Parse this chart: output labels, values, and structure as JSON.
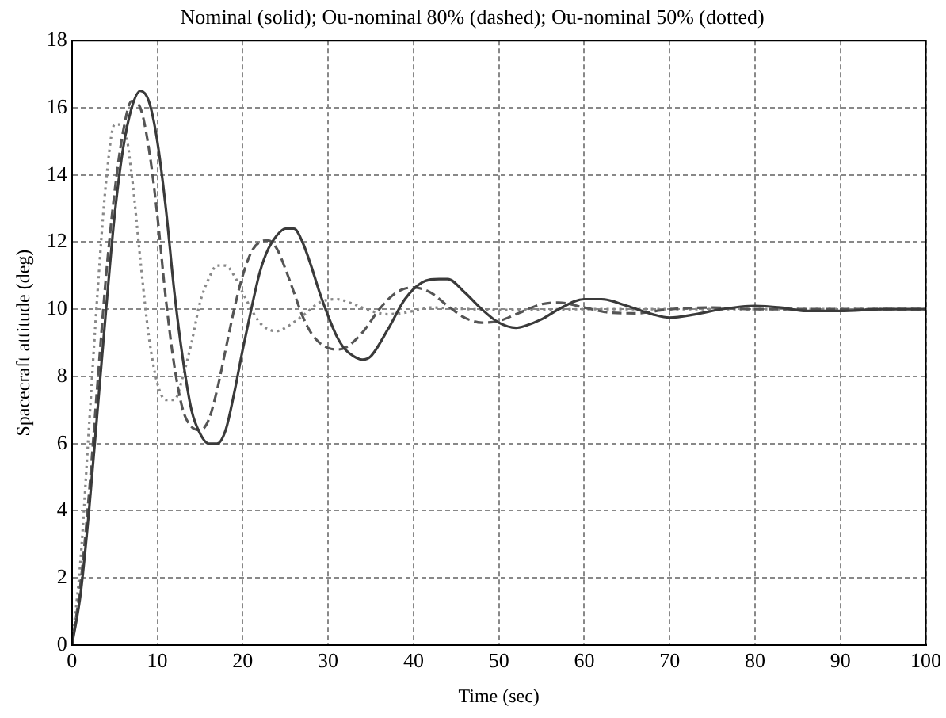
{
  "chart_data": {
    "type": "line",
    "title": "Nominal (solid); Ou-nominal 80% (dashed); Ou-nominal 50% (dotted)",
    "xlabel": "Time (sec)",
    "ylabel": "Spacecraft attitude (deg)",
    "xlim": [
      0,
      100
    ],
    "xticks": [
      0,
      10,
      20,
      30,
      40,
      50,
      60,
      70,
      80,
      90,
      100
    ],
    "ylim": [
      0,
      18
    ],
    "yticks": [
      0,
      2,
      4,
      6,
      8,
      10,
      12,
      14,
      16,
      18
    ],
    "grid": true,
    "legend": false,
    "marker": "none",
    "series": [
      {
        "color": "#3a3a3a",
        "line_style": "solid",
        "x": [
          0,
          1,
          2,
          3,
          4,
          5,
          6,
          7,
          8,
          9,
          10,
          11,
          12,
          13,
          14,
          15,
          16,
          17,
          18,
          19,
          20,
          21,
          22,
          23,
          24,
          25,
          26,
          27,
          28,
          29,
          30,
          31,
          32,
          33,
          34,
          35,
          37,
          39,
          41,
          43,
          44,
          46,
          48,
          50,
          52,
          53,
          55,
          57,
          60,
          62,
          65,
          68,
          70,
          73,
          76,
          80,
          83,
          86,
          90,
          95,
          100
        ],
        "values": [
          0,
          1.5,
          4,
          7,
          10,
          12.8,
          14.8,
          16,
          16.5,
          16.2,
          15,
          13,
          10.5,
          8.5,
          7,
          6.3,
          6,
          6,
          6.4,
          7.5,
          8.8,
          10,
          11.1,
          11.8,
          12.2,
          12.4,
          12.4,
          12,
          11.3,
          10.5,
          9.8,
          9.2,
          8.8,
          8.6,
          8.5,
          8.6,
          9.4,
          10.3,
          10.8,
          10.9,
          10.9,
          10.5,
          10,
          9.6,
          9.45,
          9.5,
          9.7,
          10,
          10.3,
          10.3,
          10.1,
          9.85,
          9.75,
          9.85,
          10,
          10.1,
          10.05,
          9.95,
          9.95,
          10,
          10
        ]
      },
      {
        "color": "#555555",
        "line_style": "dashed",
        "x": [
          0,
          1,
          2,
          3,
          4,
          5,
          6,
          7,
          8,
          9,
          10,
          11,
          12,
          13,
          14,
          15,
          16,
          17,
          18,
          19,
          20,
          21,
          22,
          23,
          24,
          25,
          26,
          27,
          28,
          29,
          30,
          31,
          32,
          34,
          36,
          38,
          40,
          42,
          44,
          46,
          48,
          50,
          52,
          55,
          57,
          60,
          63,
          66,
          70,
          75,
          80,
          90,
          100
        ],
        "values": [
          0,
          1.8,
          4.5,
          7.8,
          11,
          13.5,
          15.3,
          16.2,
          16,
          14.8,
          12.8,
          10.3,
          8.3,
          7,
          6.5,
          6.4,
          6.7,
          7.6,
          8.8,
          10,
          11,
          11.7,
          12,
          12.05,
          11.8,
          11.2,
          10.5,
          9.8,
          9.3,
          9,
          8.85,
          8.8,
          8.85,
          9.3,
          10,
          10.5,
          10.65,
          10.5,
          10.1,
          9.75,
          9.6,
          9.65,
          9.85,
          10.15,
          10.2,
          10.05,
          9.9,
          9.88,
          10,
          10.05,
          10,
          10,
          10
        ]
      },
      {
        "color": "#888888",
        "line_style": "dotted",
        "x": [
          0,
          1,
          2,
          3,
          4,
          5,
          6,
          7,
          8,
          9,
          10,
          11,
          12,
          13,
          14,
          15,
          16,
          17,
          18,
          19,
          20,
          21,
          22,
          23,
          24,
          25,
          27,
          29,
          31,
          33,
          35,
          37,
          39,
          42,
          45,
          50,
          60,
          100
        ],
        "values": [
          0,
          2.5,
          6.5,
          10.5,
          13.8,
          15.5,
          15.5,
          14,
          11.5,
          9.2,
          7.8,
          7.3,
          7.3,
          8,
          9,
          10.2,
          10.9,
          11.3,
          11.3,
          11,
          10.5,
          10,
          9.6,
          9.4,
          9.35,
          9.45,
          9.8,
          10.2,
          10.3,
          10.15,
          9.95,
          9.85,
          9.9,
          10.05,
          10.02,
          9.98,
          10,
          10
        ]
      }
    ]
  }
}
